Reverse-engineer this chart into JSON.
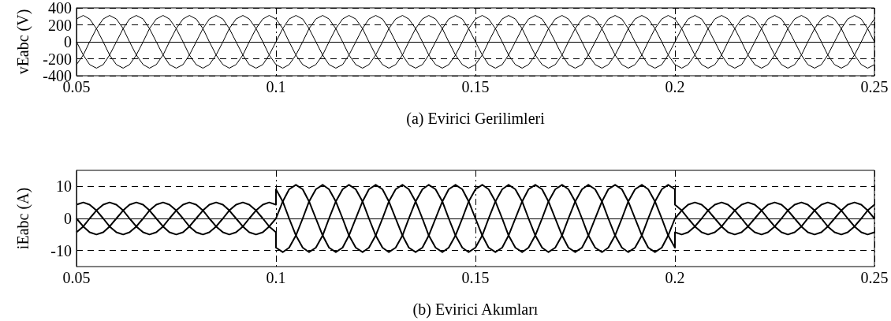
{
  "chart_data": [
    {
      "type": "line",
      "xlabel": "(a) Evirici Gerilimleri",
      "ylabel": "vEabc (V)",
      "xlim": [
        0.05,
        0.25
      ],
      "ylim": [
        -400,
        400
      ],
      "xticks": [
        0.05,
        0.1,
        0.15,
        0.2,
        0.25
      ],
      "yticks": [
        -400,
        -200,
        0,
        200,
        400
      ],
      "grid": true,
      "marker": "none",
      "x": [
        0.05,
        0.0517,
        0.0533,
        0.055,
        0.0567,
        0.0583,
        0.06,
        0.0617,
        0.0633,
        0.065,
        0.0667,
        0.0683,
        0.07,
        0.0717,
        0.0733,
        0.075,
        0.0767,
        0.0783,
        0.08,
        0.0817,
        0.0833,
        0.085,
        0.0867,
        0.0883,
        0.09,
        0.0917,
        0.0933,
        0.095,
        0.0967,
        0.0983,
        0.1,
        0.1017,
        0.1033,
        0.105,
        0.1067,
        0.1083,
        0.11,
        0.1117,
        0.1133,
        0.115,
        0.1167,
        0.1183,
        0.12,
        0.1217,
        0.1233,
        0.125,
        0.1267,
        0.1283,
        0.13,
        0.1317,
        0.1333,
        0.135,
        0.1367,
        0.1383,
        0.14,
        0.1417,
        0.1433,
        0.145,
        0.1467,
        0.1483,
        0.15,
        0.1517,
        0.1533,
        0.155,
        0.1567,
        0.1583,
        0.16,
        0.1617,
        0.1633,
        0.165,
        0.1667,
        0.1683,
        0.17,
        0.1717,
        0.1733,
        0.175,
        0.1767,
        0.1783,
        0.18,
        0.1817,
        0.1833,
        0.185,
        0.1867,
        0.1883,
        0.19,
        0.1917,
        0.1933,
        0.195,
        0.1967,
        0.1983,
        0.2,
        0.2017,
        0.2033,
        0.205,
        0.2067,
        0.2083,
        0.21,
        0.2117,
        0.2133,
        0.215,
        0.2167,
        0.2183,
        0.22,
        0.2217,
        0.2233,
        0.225,
        0.2267,
        0.2283,
        0.23,
        0.2317,
        0.2333,
        0.235,
        0.2367,
        0.2383,
        0.24,
        0.2417,
        0.2433,
        0.245,
        0.2467,
        0.2483,
        0.25
      ],
      "series": [
        {
          "color": "#000000",
          "values": [
            269,
            311,
            269,
            156,
            0,
            -156,
            -269,
            -311,
            -269,
            -156,
            0,
            156,
            269,
            311,
            269,
            156,
            0,
            -156,
            -269,
            -311,
            -269,
            -156,
            0,
            156,
            269,
            311,
            269,
            156,
            0,
            -156,
            -269,
            -311,
            -269,
            -156,
            0,
            156,
            269,
            311,
            269,
            156,
            0,
            -156,
            -269,
            -311,
            -269,
            -156,
            0,
            156,
            269,
            311,
            269,
            156,
            0,
            -156,
            -269,
            -311,
            -269,
            -156,
            0,
            156,
            269,
            311,
            269,
            156,
            0,
            -156,
            -269,
            -311,
            -269,
            -156,
            0,
            156,
            269,
            311,
            269,
            156,
            0,
            -156,
            -269,
            -311,
            -269,
            -156,
            0,
            156,
            269,
            311,
            269,
            156,
            0,
            -156,
            -269,
            -311,
            -269,
            -156,
            0,
            156,
            269,
            311,
            269,
            156,
            0,
            -156,
            -269,
            -311,
            -269,
            -156,
            0,
            156,
            269,
            311,
            269,
            156,
            0,
            -156,
            -269,
            -311,
            -269,
            -156,
            0,
            156,
            269
          ]
        },
        {
          "color": "#000000",
          "values": [
            -269,
            -156,
            0,
            156,
            269,
            311,
            269,
            156,
            0,
            -156,
            -269,
            -311,
            -269,
            -156,
            0,
            156,
            269,
            311,
            269,
            156,
            0,
            -156,
            -269,
            -311,
            -269,
            -156,
            0,
            156,
            269,
            311,
            269,
            156,
            0,
            -156,
            -269,
            -311,
            -269,
            -156,
            0,
            156,
            269,
            311,
            269,
            156,
            0,
            -156,
            -269,
            -311,
            -269,
            -156,
            0,
            156,
            269,
            311,
            269,
            156,
            0,
            -156,
            -269,
            -311,
            -269,
            -156,
            0,
            156,
            269,
            311,
            269,
            156,
            0,
            -156,
            -269,
            -311,
            -269,
            -156,
            0,
            156,
            269,
            311,
            269,
            156,
            0,
            -156,
            -269,
            -311,
            -269,
            -156,
            0,
            156,
            269,
            311,
            269,
            156,
            0,
            -156,
            -269,
            -311,
            -269,
            -156,
            0,
            156,
            269,
            311,
            269,
            156,
            0,
            -156,
            -269,
            -311,
            -269,
            -156,
            0,
            156,
            269,
            311,
            269,
            156,
            0,
            -156,
            -269,
            -311,
            -269
          ]
        },
        {
          "color": "#000000",
          "values": [
            0,
            -156,
            -269,
            -311,
            -269,
            -156,
            0,
            156,
            269,
            311,
            269,
            156,
            0,
            -156,
            -269,
            -311,
            -269,
            -156,
            0,
            156,
            269,
            311,
            269,
            156,
            0,
            -156,
            -269,
            -311,
            -269,
            -156,
            0,
            156,
            269,
            311,
            269,
            156,
            0,
            -156,
            -269,
            -311,
            -269,
            -156,
            0,
            156,
            269,
            311,
            269,
            156,
            0,
            -156,
            -269,
            -311,
            -269,
            -156,
            0,
            156,
            269,
            311,
            269,
            156,
            0,
            -156,
            -269,
            -311,
            -269,
            -156,
            0,
            156,
            269,
            311,
            269,
            156,
            0,
            -156,
            -269,
            -311,
            -269,
            -156,
            0,
            156,
            269,
            311,
            269,
            156,
            0,
            -156,
            -269,
            -311,
            -269,
            -156,
            0,
            156,
            269,
            311,
            269,
            156,
            0,
            -156,
            -269,
            -311,
            -269,
            -156,
            0,
            156,
            269,
            311,
            269,
            156,
            0,
            -156,
            -269,
            -311,
            -269,
            -156,
            0,
            156,
            269,
            311,
            269,
            156,
            0
          ]
        }
      ]
    },
    {
      "type": "line",
      "xlabel": "(b) Evirici Akımları",
      "ylabel": "iEabc (A)",
      "xlim": [
        0.05,
        0.25
      ],
      "ylim": [
        -15,
        15
      ],
      "xticks": [
        0.05,
        0.1,
        0.15,
        0.2,
        0.25
      ],
      "yticks": [
        -10,
        0,
        10
      ],
      "grid": true,
      "marker": "none",
      "x": [
        0.05,
        0.0517,
        0.0533,
        0.055,
        0.0567,
        0.0583,
        0.06,
        0.0617,
        0.0633,
        0.065,
        0.0667,
        0.0683,
        0.07,
        0.0717,
        0.0733,
        0.075,
        0.0767,
        0.0783,
        0.08,
        0.0817,
        0.0833,
        0.085,
        0.0867,
        0.0883,
        0.09,
        0.0917,
        0.0933,
        0.095,
        0.0967,
        0.0983,
        0.1,
        0.1,
        0.1017,
        0.1033,
        0.105,
        0.1067,
        0.1083,
        0.11,
        0.1117,
        0.1133,
        0.115,
        0.1167,
        0.1183,
        0.12,
        0.1217,
        0.1233,
        0.125,
        0.1267,
        0.1283,
        0.13,
        0.1317,
        0.1333,
        0.135,
        0.1367,
        0.1383,
        0.14,
        0.1417,
        0.1433,
        0.145,
        0.1467,
        0.1483,
        0.15,
        0.1517,
        0.1533,
        0.155,
        0.1567,
        0.1583,
        0.16,
        0.1617,
        0.1633,
        0.165,
        0.1667,
        0.1683,
        0.17,
        0.1717,
        0.1733,
        0.175,
        0.1767,
        0.1783,
        0.18,
        0.1817,
        0.1833,
        0.185,
        0.1867,
        0.1883,
        0.19,
        0.1917,
        0.1933,
        0.195,
        0.1967,
        0.1983,
        0.2,
        0.2,
        0.2017,
        0.2033,
        0.205,
        0.2067,
        0.2083,
        0.21,
        0.2117,
        0.2133,
        0.215,
        0.2167,
        0.2183,
        0.22,
        0.2217,
        0.2233,
        0.225,
        0.2267,
        0.2283,
        0.23,
        0.2317,
        0.2333,
        0.235,
        0.2367,
        0.2383,
        0.24,
        0.2417,
        0.2433,
        0.245,
        0.2467,
        0.2483,
        0.25
      ],
      "series": [
        {
          "color": "#000000",
          "values": [
            4.3,
            5,
            4.3,
            2.5,
            0,
            -2.5,
            -4.3,
            -5,
            -4.3,
            -2.5,
            0,
            2.5,
            4.3,
            5,
            4.3,
            2.5,
            0,
            -2.5,
            -4.3,
            -5,
            -4.3,
            -2.5,
            0,
            2.5,
            4.3,
            5,
            4.3,
            2.5,
            0,
            -2.5,
            -4.3,
            -9.1,
            -10.5,
            -9.1,
            -5.3,
            0,
            5.3,
            9.1,
            10.5,
            9.1,
            5.3,
            0,
            -5.3,
            -9.1,
            -10.5,
            -9.1,
            -5.3,
            0,
            5.3,
            9.1,
            10.5,
            9.1,
            5.3,
            0,
            -5.3,
            -9.1,
            -10.5,
            -9.1,
            -5.3,
            0,
            5.3,
            9.1,
            10.5,
            9.1,
            5.3,
            0,
            -5.3,
            -9.1,
            -10.5,
            -9.1,
            -5.3,
            0,
            5.3,
            9.1,
            10.5,
            9.1,
            5.3,
            0,
            -5.3,
            -9.1,
            -10.5,
            -9.1,
            -5.3,
            0,
            5.3,
            9.1,
            10.5,
            9.1,
            5.3,
            0,
            -5.3,
            -9.1,
            -4.3,
            -5,
            -4.3,
            -2.5,
            0,
            2.5,
            4.3,
            5,
            4.3,
            2.5,
            0,
            -2.5,
            -4.3,
            -5,
            -4.3,
            -2.5,
            0,
            2.5,
            4.3,
            5,
            4.3,
            2.5,
            0,
            -2.5,
            -4.3,
            -5,
            -4.3,
            -2.5,
            0,
            2.5,
            4.3
          ]
        },
        {
          "color": "#000000",
          "values": [
            -4.3,
            -2.5,
            0,
            2.5,
            4.3,
            5,
            4.3,
            2.5,
            0,
            -2.5,
            -4.3,
            -5,
            -4.3,
            -2.5,
            0,
            2.5,
            4.3,
            5,
            4.3,
            2.5,
            0,
            -2.5,
            -4.3,
            -5,
            -4.3,
            -2.5,
            0,
            2.5,
            4.3,
            5,
            4.3,
            9.1,
            5.3,
            0,
            -5.3,
            -9.1,
            -10.5,
            -9.1,
            -5.3,
            0,
            5.3,
            9.1,
            10.5,
            9.1,
            5.3,
            0,
            -5.3,
            -9.1,
            -10.5,
            -9.1,
            -5.3,
            0,
            5.3,
            9.1,
            10.5,
            9.1,
            5.3,
            0,
            -5.3,
            -9.1,
            -10.5,
            -9.1,
            -5.3,
            0,
            5.3,
            9.1,
            10.5,
            9.1,
            5.3,
            0,
            -5.3,
            -9.1,
            -10.5,
            -9.1,
            -5.3,
            0,
            5.3,
            9.1,
            10.5,
            9.1,
            5.3,
            0,
            -5.3,
            -9.1,
            -10.5,
            -9.1,
            -5.3,
            0,
            5.3,
            9.1,
            10.5,
            9.1,
            4.3,
            2.5,
            0,
            -2.5,
            -4.3,
            -5,
            -4.3,
            -2.5,
            0,
            2.5,
            4.3,
            5,
            4.3,
            2.5,
            0,
            -2.5,
            -4.3,
            -5,
            -4.3,
            -2.5,
            0,
            2.5,
            4.3,
            5,
            4.3,
            2.5,
            0,
            -2.5,
            -4.3,
            -5,
            -4.3
          ]
        },
        {
          "color": "#000000",
          "values": [
            0,
            -2.5,
            -4.3,
            -5,
            -4.3,
            -2.5,
            0,
            2.5,
            4.3,
            5,
            4.3,
            2.5,
            0,
            -2.5,
            -4.3,
            -5,
            -4.3,
            -2.5,
            0,
            2.5,
            4.3,
            5,
            4.3,
            2.5,
            0,
            -2.5,
            -4.3,
            -5,
            -4.3,
            -2.5,
            0,
            0,
            5.3,
            9.1,
            10.5,
            9.1,
            5.3,
            0,
            -5.3,
            -9.1,
            -10.5,
            -9.1,
            -5.3,
            0,
            5.3,
            9.1,
            10.5,
            9.1,
            5.3,
            0,
            -5.3,
            -9.1,
            -10.5,
            -9.1,
            -5.3,
            0,
            5.3,
            9.1,
            10.5,
            9.1,
            5.3,
            0,
            -5.3,
            -9.1,
            -10.5,
            -9.1,
            -5.3,
            0,
            5.3,
            9.1,
            10.5,
            9.1,
            5.3,
            0,
            -5.3,
            -9.1,
            -10.5,
            -9.1,
            -5.3,
            0,
            5.3,
            9.1,
            10.5,
            9.1,
            5.3,
            0,
            -5.3,
            -9.1,
            -10.5,
            -9.1,
            -5.3,
            0,
            0,
            2.5,
            4.3,
            5,
            4.3,
            2.5,
            0,
            -2.5,
            -4.3,
            -5,
            -4.3,
            -2.5,
            0,
            2.5,
            4.3,
            5,
            4.3,
            2.5,
            0,
            -2.5,
            -4.3,
            -5,
            -4.3,
            -2.5,
            0,
            2.5,
            4.3,
            5,
            4.3,
            2.5,
            0
          ]
        }
      ]
    }
  ]
}
